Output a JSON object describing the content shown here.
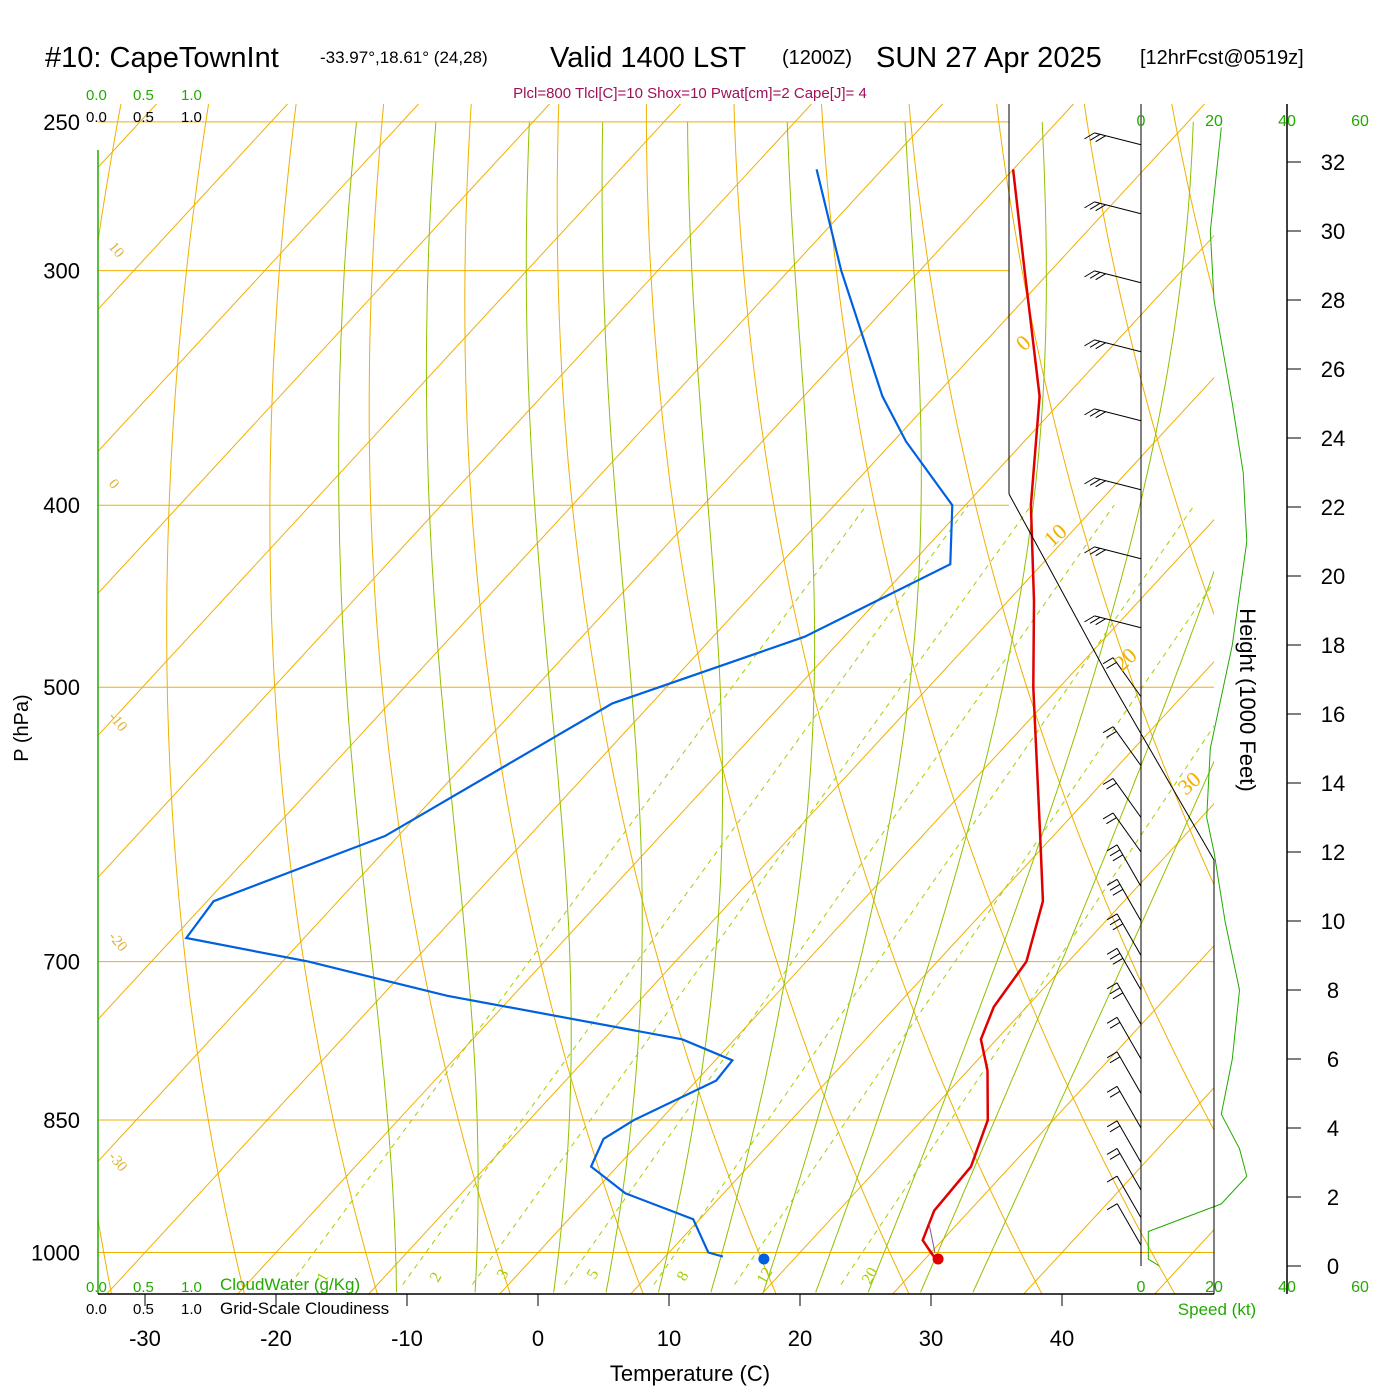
{
  "header": {
    "station": "#10: CapeTownInt",
    "coords": "-33.97°,18.61° (24,28)",
    "valid": "Valid 1400 LST",
    "utc": "(1200Z)",
    "date": "SUN 27 Apr 2025",
    "forecast": "[12hrFcst@0519z]"
  },
  "indices": "Plcl=800 Tlcl[C]=10 Shox=10 Pwat[cm]=2 Cape[J]= 4",
  "cloud_scale": {
    "top_green": [
      "0.0",
      "0.5",
      "1.0"
    ],
    "top_black": [
      "0.0",
      "0.5",
      "1.0"
    ],
    "bottom_green": [
      "0.0",
      "0.5",
      "1.0"
    ],
    "bottom_black": [
      "0.0",
      "0.5",
      "1.0"
    ],
    "cloudwater_label": "CloudWater (g/Kg)",
    "cloudiness_label": "Grid-Scale Cloudiness"
  },
  "speed_scale": {
    "ticks": [
      "0",
      "20",
      "40",
      "60"
    ],
    "label": "Speed (kt)"
  },
  "colors": {
    "isobar": "#f0b000",
    "isotherm": "#f0b000",
    "dry_adiabat": "#f0b000",
    "moist_adiabat": "#90c000",
    "mixing_ratio": "#a0d000",
    "temperature": "#e00000",
    "dewpoint": "#0060e0",
    "wind_speed": "#22aa00",
    "frame": "#22aa00"
  },
  "chart_data": {
    "type": "skew-t",
    "xlabel": "Temperature (C)",
    "ylabel": "P (hPa)",
    "y2label": "Height (1000 Feet)",
    "pressure_ticks": [
      250,
      300,
      400,
      500,
      700,
      850,
      1000
    ],
    "temperature_ticks": [
      -30,
      -20,
      -10,
      0,
      10,
      20,
      30,
      40
    ],
    "height_ticks": [
      0,
      2,
      4,
      6,
      8,
      10,
      12,
      14,
      16,
      18,
      20,
      22,
      24,
      26,
      28,
      30,
      32
    ],
    "isotherm_labels": [
      "10",
      "0",
      "-10",
      "-20",
      "-30",
      "0",
      "10",
      "20",
      "30"
    ],
    "mixing_ratio_labels": [
      "1",
      "2",
      "3",
      "5",
      "8",
      "12",
      "20"
    ],
    "temperature_profile": [
      {
        "p": 1010,
        "t": 31.0
      },
      {
        "p": 1000,
        "t": 30.0
      },
      {
        "p": 985,
        "t": 28.5
      },
      {
        "p": 950,
        "t": 27.3
      },
      {
        "p": 900,
        "t": 27.0
      },
      {
        "p": 850,
        "t": 25.0
      },
      {
        "p": 800,
        "t": 21.5
      },
      {
        "p": 770,
        "t": 18.8
      },
      {
        "p": 740,
        "t": 17.5
      },
      {
        "p": 700,
        "t": 16.8
      },
      {
        "p": 650,
        "t": 13.8
      },
      {
        "p": 600,
        "t": 9.0
      },
      {
        "p": 500,
        "t": -2.0
      },
      {
        "p": 450,
        "t": -8.0
      },
      {
        "p": 400,
        "t": -15.0
      },
      {
        "p": 350,
        "t": -22.0
      },
      {
        "p": 300,
        "t": -32.0
      },
      {
        "p": 265,
        "t": -40.0
      }
    ],
    "dewpoint_profile": [
      {
        "p": 1005,
        "t": 14.4
      },
      {
        "p": 1000,
        "t": 13.0
      },
      {
        "p": 960,
        "t": 9.5
      },
      {
        "p": 930,
        "t": 2.5
      },
      {
        "p": 900,
        "t": -2.0
      },
      {
        "p": 870,
        "t": -3.0
      },
      {
        "p": 850,
        "t": -2.0
      },
      {
        "p": 810,
        "t": 1.5
      },
      {
        "p": 790,
        "t": 1.3
      },
      {
        "p": 770,
        "t": -4.0
      },
      {
        "p": 730,
        "t": -25.0
      },
      {
        "p": 700,
        "t": -38.0
      },
      {
        "p": 680,
        "t": -49.0
      },
      {
        "p": 650,
        "t": -49.5
      },
      {
        "p": 600,
        "t": -41.0
      },
      {
        "p": 510,
        "t": -33.0
      },
      {
        "p": 470,
        "t": -23.0
      },
      {
        "p": 430,
        "t": -17.0
      },
      {
        "p": 400,
        "t": -21.0
      },
      {
        "p": 370,
        "t": -29.0
      },
      {
        "p": 350,
        "t": -34.0
      },
      {
        "p": 300,
        "t": -46.0
      },
      {
        "p": 265,
        "t": -55.0
      }
    ],
    "surface_temperature": 31.0,
    "surface_dewpoint": 17.7,
    "wind_speed_profile": [
      {
        "h": 0.0,
        "s": 5
      },
      {
        "h": 0.2,
        "s": 2
      },
      {
        "h": 1.0,
        "s": 2
      },
      {
        "h": 1.8,
        "s": 22
      },
      {
        "h": 2.6,
        "s": 29
      },
      {
        "h": 3.4,
        "s": 27
      },
      {
        "h": 4.4,
        "s": 22
      },
      {
        "h": 6.0,
        "s": 25
      },
      {
        "h": 8.0,
        "s": 27
      },
      {
        "h": 10.0,
        "s": 23
      },
      {
        "h": 12.0,
        "s": 20
      },
      {
        "h": 13.0,
        "s": 18
      },
      {
        "h": 15.0,
        "s": 19
      },
      {
        "h": 18.0,
        "s": 25
      },
      {
        "h": 21.0,
        "s": 29
      },
      {
        "h": 23.0,
        "s": 28
      },
      {
        "h": 25.0,
        "s": 25
      },
      {
        "h": 28.0,
        "s": 20
      },
      {
        "h": 30.0,
        "s": 19
      },
      {
        "h": 33.0,
        "s": 22
      }
    ],
    "wind_barbs": [
      {
        "h": 0.6,
        "s": 10
      },
      {
        "h": 1.4,
        "s": 10
      },
      {
        "h": 2.2,
        "s": 15
      },
      {
        "h": 3.0,
        "s": 15
      },
      {
        "h": 4.0,
        "s": 20
      },
      {
        "h": 5.0,
        "s": 20
      },
      {
        "h": 6.0,
        "s": 20
      },
      {
        "h": 7.0,
        "s": 25
      },
      {
        "h": 8.0,
        "s": 25
      },
      {
        "h": 9.0,
        "s": 25
      },
      {
        "h": 10.0,
        "s": 25
      },
      {
        "h": 11.0,
        "s": 25
      },
      {
        "h": 12.0,
        "s": 20
      },
      {
        "h": 13.0,
        "s": 20
      },
      {
        "h": 14.5,
        "s": 20
      },
      {
        "h": 16.5,
        "s": 20
      },
      {
        "h": 18.5,
        "s": 30
      },
      {
        "h": 20.5,
        "s": 30
      },
      {
        "h": 22.5,
        "s": 25
      },
      {
        "h": 24.5,
        "s": 25
      },
      {
        "h": 26.5,
        "s": 25
      },
      {
        "h": 28.5,
        "s": 25
      },
      {
        "h": 30.5,
        "s": 25
      },
      {
        "h": 32.5,
        "s": 25
      }
    ]
  }
}
